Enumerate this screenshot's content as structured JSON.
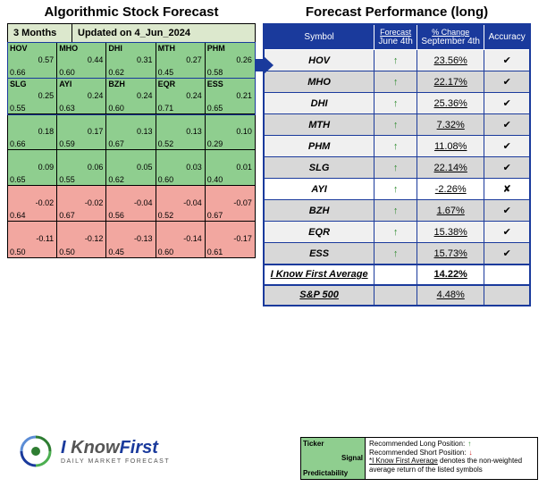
{
  "left": {
    "title": "Algorithmic Stock Forecast",
    "months": "3 Months",
    "updated": "Updated on 4_Jun_2024",
    "colors": {
      "green_header": "#dce8cd",
      "green_cell": "#8fce8f",
      "red_cell": "#f2a7a0",
      "outline": "#1a3a9c"
    },
    "bands": [
      {
        "outlined": true,
        "color": "#8fce8f",
        "cells": [
          {
            "t": "HOV",
            "s": "0.57",
            "p": "0.66"
          },
          {
            "t": "MHO",
            "s": "0.44",
            "p": "0.60"
          },
          {
            "t": "DHI",
            "s": "0.31",
            "p": "0.62"
          },
          {
            "t": "MTH",
            "s": "0.27",
            "p": "0.45"
          },
          {
            "t": "PHM",
            "s": "0.26",
            "p": "0.58"
          }
        ]
      },
      {
        "outlined": true,
        "color": "#8fce8f",
        "cells": [
          {
            "t": "SLG",
            "s": "0.25",
            "p": "0.55"
          },
          {
            "t": "AYI",
            "s": "0.24",
            "p": "0.63"
          },
          {
            "t": "BZH",
            "s": "0.24",
            "p": "0.60"
          },
          {
            "t": "EQR",
            "s": "0.24",
            "p": "0.71"
          },
          {
            "t": "ESS",
            "s": "0.21",
            "p": "0.65"
          }
        ]
      },
      {
        "outlined": false,
        "color": "#8fce8f",
        "cells": [
          {
            "t": "",
            "s": "0.18",
            "p": "0.66"
          },
          {
            "t": "",
            "s": "0.17",
            "p": "0.59"
          },
          {
            "t": "",
            "s": "0.13",
            "p": "0.67"
          },
          {
            "t": "",
            "s": "0.13",
            "p": "0.52"
          },
          {
            "t": "",
            "s": "0.10",
            "p": "0.29"
          }
        ]
      },
      {
        "outlined": false,
        "color": "#8fce8f",
        "cells": [
          {
            "t": "",
            "s": "0.09",
            "p": "0.65"
          },
          {
            "t": "",
            "s": "0.06",
            "p": "0.55"
          },
          {
            "t": "",
            "s": "0.05",
            "p": "0.62"
          },
          {
            "t": "",
            "s": "0.03",
            "p": "0.60"
          },
          {
            "t": "",
            "s": "0.01",
            "p": "0.40"
          }
        ]
      },
      {
        "outlined": false,
        "color": "#f2a7a0",
        "cells": [
          {
            "t": "",
            "s": "-0.02",
            "p": "0.64"
          },
          {
            "t": "",
            "s": "-0.02",
            "p": "0.67"
          },
          {
            "t": "",
            "s": "-0.04",
            "p": "0.56"
          },
          {
            "t": "",
            "s": "-0.04",
            "p": "0.52"
          },
          {
            "t": "",
            "s": "-0.07",
            "p": "0.67"
          }
        ]
      },
      {
        "outlined": false,
        "color": "#f2a7a0",
        "cells": [
          {
            "t": "",
            "s": "-0.11",
            "p": "0.50"
          },
          {
            "t": "",
            "s": "-0.12",
            "p": "0.50"
          },
          {
            "t": "",
            "s": "-0.13",
            "p": "0.45"
          },
          {
            "t": "",
            "s": "-0.14",
            "p": "0.60"
          },
          {
            "t": "",
            "s": "-0.17",
            "p": "0.61"
          }
        ]
      }
    ]
  },
  "right": {
    "title": "Forecast Performance (long)",
    "headers": {
      "symbol": "Symbol",
      "forecast_top": "Forecast",
      "forecast_bot": "June 4th",
      "change_top": "% Change",
      "change_bot": "September 4th",
      "accuracy": "Accuracy"
    },
    "rows": [
      {
        "sym": "HOV",
        "dir": "up",
        "pct": "23.56%",
        "acc": "✔",
        "bg": "light"
      },
      {
        "sym": "MHO",
        "dir": "up",
        "pct": "22.17%",
        "acc": "✔",
        "bg": "grey"
      },
      {
        "sym": "DHI",
        "dir": "up",
        "pct": "25.36%",
        "acc": "✔",
        "bg": "light"
      },
      {
        "sym": "MTH",
        "dir": "up",
        "pct": "7.32%",
        "acc": "✔",
        "bg": "grey"
      },
      {
        "sym": "PHM",
        "dir": "up",
        "pct": "11.08%",
        "acc": "✔",
        "bg": "light"
      },
      {
        "sym": "SLG",
        "dir": "up",
        "pct": "22.14%",
        "acc": "✔",
        "bg": "grey"
      },
      {
        "sym": "AYI",
        "dir": "up",
        "pct": "-2.26%",
        "acc": "✘",
        "bg": "white"
      },
      {
        "sym": "BZH",
        "dir": "up",
        "pct": "1.67%",
        "acc": "✔",
        "bg": "grey"
      },
      {
        "sym": "EQR",
        "dir": "up",
        "pct": "15.38%",
        "acc": "✔",
        "bg": "light"
      },
      {
        "sym": "ESS",
        "dir": "up",
        "pct": "15.73%",
        "acc": "✔",
        "bg": "grey"
      }
    ],
    "avg_row": {
      "label": "I Know First Average",
      "pct": "14.22%"
    },
    "sp_row": {
      "label": "S&P 500",
      "pct": "4.48%"
    }
  },
  "legend": {
    "ticker": "Ticker",
    "signal": "Signal",
    "pred": "Predictability",
    "long": "Recommended Long Position:",
    "short": "Recommended Short Position:",
    "note": "*I Know First Average denotes the non-weighted average return of the listed symbols"
  },
  "logo": {
    "main1": "I ",
    "main2": "Know",
    "main3": "First",
    "sub": "DAILY MARKET FORECAST"
  }
}
